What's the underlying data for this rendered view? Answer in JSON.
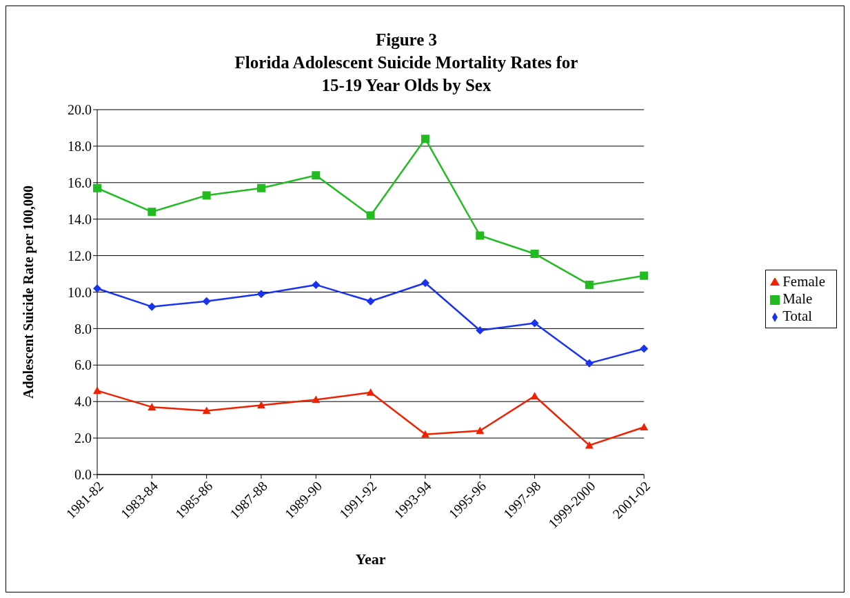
{
  "chart_data": {
    "type": "line",
    "title": "Figure 3\nFlorida Adolescent Suicide Mortality Rates for\n15-19 Year Olds by Sex",
    "xlabel": "Year",
    "ylabel": "Adolescent Suicide Rate per 100,000",
    "categories": [
      "1981-82",
      "1983-84",
      "1985-86",
      "1987-88",
      "1989-90",
      "1991-92",
      "1993-94",
      "1995-96",
      "1997-98",
      "1999-2000",
      "2001-02"
    ],
    "series": [
      {
        "name": "Total",
        "color": "#1a33f0",
        "marker": "diamond",
        "values": [
          10.2,
          9.2,
          9.5,
          9.9,
          10.4,
          9.5,
          10.5,
          7.9,
          8.3,
          6.1,
          6.9
        ]
      },
      {
        "name": "Male",
        "color": "#22bb22",
        "marker": "square",
        "values": [
          15.7,
          14.4,
          15.3,
          15.7,
          16.4,
          14.2,
          18.4,
          13.1,
          12.1,
          10.4,
          10.9
        ]
      },
      {
        "name": "Female",
        "color": "#ee2200",
        "marker": "triangle",
        "values": [
          4.6,
          3.7,
          3.5,
          3.8,
          4.1,
          4.5,
          2.2,
          2.4,
          4.3,
          1.6,
          2.6
        ]
      }
    ],
    "ylim": [
      0,
      20
    ],
    "yticks": [
      {
        "value": 0,
        "label": "0.0"
      },
      {
        "value": 2,
        "label": "2.0"
      },
      {
        "value": 4,
        "label": "4.0"
      },
      {
        "value": 6,
        "label": "6.0"
      },
      {
        "value": 8,
        "label": "8.0"
      },
      {
        "value": 10,
        "label": "10.0"
      },
      {
        "value": 12,
        "label": "12.0"
      },
      {
        "value": 14,
        "label": "14.0"
      },
      {
        "value": 16,
        "label": "16.0"
      },
      {
        "value": 18,
        "label": "18.0"
      },
      {
        "value": 20,
        "label": "20.0"
      }
    ],
    "grid": "y",
    "legend": "right"
  }
}
